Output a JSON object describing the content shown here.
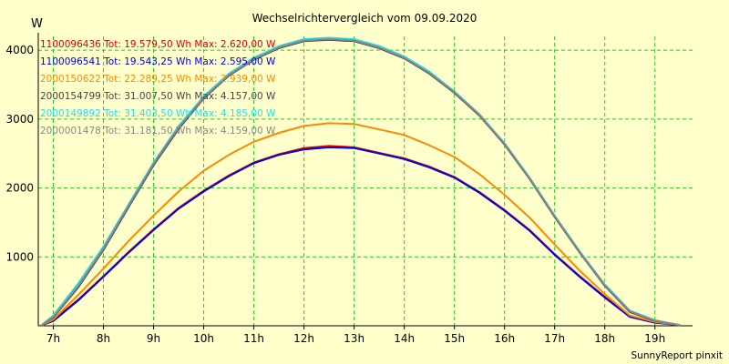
{
  "chart_data": {
    "type": "line",
    "title": "Wechselrichtervergleich vom 09.09.2020",
    "ylabel": "W",
    "xlabel": "",
    "xlim": [
      6.7,
      19.75
    ],
    "ylim": [
      0,
      4200
    ],
    "grid": true,
    "legend_position": "top-left",
    "x_ticks": [
      {
        "value": 7,
        "label": "7h"
      },
      {
        "value": 8,
        "label": "8h"
      },
      {
        "value": 9,
        "label": "9h"
      },
      {
        "value": 10,
        "label": "10h"
      },
      {
        "value": 11,
        "label": "11h"
      },
      {
        "value": 12,
        "label": "12h"
      },
      {
        "value": 13,
        "label": "13h"
      },
      {
        "value": 14,
        "label": "14h"
      },
      {
        "value": 15,
        "label": "15h"
      },
      {
        "value": 16,
        "label": "16h"
      },
      {
        "value": 17,
        "label": "17h"
      },
      {
        "value": 18,
        "label": "18h"
      },
      {
        "value": 19,
        "label": "19h"
      }
    ],
    "y_ticks": [
      {
        "value": 1000,
        "label": "1000"
      },
      {
        "value": 2000,
        "label": "2000"
      },
      {
        "value": 3000,
        "label": "3000"
      },
      {
        "value": 4000,
        "label": "4000"
      }
    ],
    "x": [
      6.75,
      7.0,
      7.5,
      8.0,
      8.5,
      9.0,
      9.5,
      10.0,
      10.5,
      11.0,
      11.5,
      12.0,
      12.5,
      13.0,
      13.5,
      14.0,
      14.5,
      15.0,
      15.5,
      16.0,
      16.5,
      17.0,
      17.5,
      18.0,
      18.5,
      19.0,
      19.5
    ],
    "series": [
      {
        "name": "1100096436 Tot: 19.579,50 Wh Max: 2.620,00 W",
        "color": "#dd0000",
        "values": [
          0,
          80,
          380,
          720,
          1070,
          1400,
          1710,
          1960,
          2180,
          2370,
          2490,
          2580,
          2610,
          2590,
          2510,
          2430,
          2310,
          2160,
          1940,
          1680,
          1390,
          1040,
          720,
          420,
          140,
          50,
          10
        ]
      },
      {
        "name": "1100096541 Tot: 19.543,25 Wh Max: 2.595,00 W",
        "color": "#0000dd",
        "values": [
          0,
          70,
          370,
          710,
          1060,
          1390,
          1700,
          1950,
          2170,
          2360,
          2480,
          2560,
          2590,
          2580,
          2500,
          2420,
          2300,
          2150,
          1930,
          1670,
          1380,
          1030,
          710,
          410,
          130,
          45,
          10
        ]
      },
      {
        "name": "2000150622 Tot: 22.289,25 Wh Max: 2.939,00 W",
        "color": "#ff8800",
        "values": [
          0,
          90,
          450,
          830,
          1230,
          1600,
          1950,
          2250,
          2480,
          2670,
          2800,
          2900,
          2940,
          2930,
          2850,
          2770,
          2620,
          2450,
          2200,
          1900,
          1570,
          1180,
          800,
          460,
          150,
          55,
          10
        ]
      },
      {
        "name": "2000154799 Tot: 31.007,50 Wh Max: 4.157,00 W",
        "color": "#444444",
        "values": [
          0,
          120,
          560,
          1100,
          1720,
          2330,
          2860,
          3300,
          3630,
          3860,
          4030,
          4130,
          4150,
          4130,
          4030,
          3880,
          3660,
          3380,
          3050,
          2630,
          2130,
          1580,
          1060,
          580,
          200,
          70,
          10
        ]
      },
      {
        "name": "2000149892 Tot: 31.403,50 Wh Max: 4.185,00 W",
        "color": "#22e0ee",
        "values": [
          0,
          150,
          620,
          1150,
          1760,
          2370,
          2900,
          3330,
          3660,
          3890,
          4060,
          4160,
          4180,
          4160,
          4060,
          3910,
          3690,
          3400,
          3070,
          2650,
          2150,
          1600,
          1080,
          600,
          220,
          80,
          10
        ]
      },
      {
        "name": "2000001478 Tot: 31.181,50 Wh Max: 4.159,00 W",
        "color": "#888888",
        "values": [
          0,
          130,
          580,
          1120,
          1740,
          2350,
          2880,
          3310,
          3640,
          3870,
          4040,
          4140,
          4160,
          4140,
          4040,
          3890,
          3670,
          3390,
          3060,
          2640,
          2140,
          1590,
          1070,
          590,
          210,
          75,
          10
        ]
      }
    ]
  },
  "footer": "SunnyReport pinxit"
}
